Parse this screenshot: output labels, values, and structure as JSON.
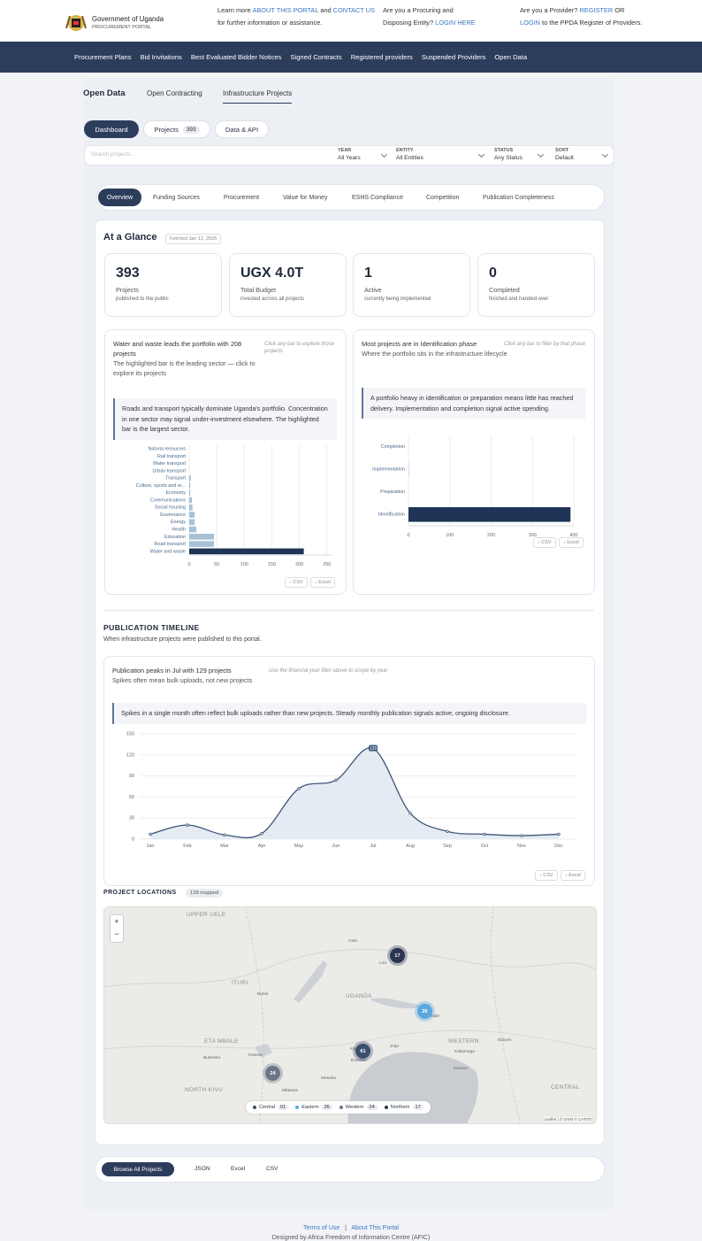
{
  "header": {
    "org": "Government of Uganda",
    "portal": "PROCUREMENT PORTAL",
    "info": [
      "Learn more ",
      "ABOUT THIS PORTAL",
      " and ",
      "CONTACT US",
      " for further information or assistance."
    ],
    "entity": [
      "Are you a Procuring and Disposing Entity? ",
      "LOGIN HERE"
    ],
    "provider": [
      "Are you a Provider? ",
      "REGISTER",
      " OR ",
      "LOGIN",
      " to the PPDA Register of Providers."
    ]
  },
  "nav": [
    "Procurement Plans",
    "Bid Invitations",
    "Best Evaluated Bidder Notices",
    "Signed Contracts",
    "Registered providers",
    "Suspended Providers",
    "Open Data"
  ],
  "tabs": [
    "Open Data",
    "Open Contracting",
    "Infrastructure Projects"
  ],
  "buttons": {
    "dashboard": "Dashboard",
    "projects": "Projects",
    "projects_count": 393,
    "api": "Data & API"
  },
  "filters": {
    "search": "Search projects...",
    "fields": [
      {
        "label": "YEAR",
        "value": "All Years"
      },
      {
        "label": "ENTITY",
        "value": "All Entities"
      },
      {
        "label": "STATUS",
        "value": "Any Status"
      },
      {
        "label": "SORT",
        "value": "Default"
      }
    ]
  },
  "section_tabs": [
    "Overview",
    "Funding Sources",
    "Procurement",
    "Value for Money",
    "ESHS Compliance",
    "Competition",
    "Publication Completeness"
  ],
  "glance": {
    "title": "At a Glance",
    "fetched": "Fetched Jan 12, 2026",
    "kpis": [
      {
        "value": 393,
        "label": "Projects",
        "note": "published to the public"
      },
      {
        "value": "UGX 4.0T",
        "label": "Total Budget",
        "note": "invested across all projects"
      },
      {
        "value": 1,
        "label": "Active",
        "note": "currently being implemented"
      },
      {
        "value": 0,
        "label": "Completed",
        "note": "finished and handed over"
      }
    ]
  },
  "chart_data": [
    {
      "type": "bar",
      "orientation": "horizontal",
      "title": "Water and waste leads the portfolio with 208 projects",
      "subtitle": "The highlighted bar is the leading sector — click to explore its projects",
      "hint": "Click any bar to explore those projects",
      "callout": "Roads and transport typically dominate Uganda's portfolio. Concentration in one sector may signal under-investment elsewhere. The highlighted bar is the largest sector.",
      "categories": [
        "Natural resources",
        "Rail transport",
        "Water transport",
        "Urban transport",
        "Transport",
        "Culture, sports and re...",
        "Economy",
        "Communications",
        "Social housing",
        "Governance",
        "Energy",
        "Health",
        "Education",
        "Road transport",
        "Water and waste"
      ],
      "values": [
        0,
        0,
        0,
        0,
        3,
        2,
        2,
        5,
        6,
        10,
        10,
        13,
        45,
        45,
        208
      ],
      "color": "#a9c1d6",
      "highlight_color": "#1f3456",
      "xlim": [
        0,
        260
      ],
      "xticks": [
        0,
        50,
        100,
        150,
        200,
        250
      ],
      "grid": true,
      "downloads": [
        "↓ CSV",
        "↓ Excel"
      ]
    },
    {
      "type": "bar",
      "orientation": "horizontal",
      "title": "Most projects are in Identification phase",
      "subtitle": "Where the portfolio sits in the infrastructure lifecycle",
      "hint": "Click any bar to filter by that phase",
      "callout": "A portfolio heavy in identification or preparation means little has reached delivery. Implementation and completion signal active spending.",
      "categories": [
        "Completion",
        "Implementation",
        "Preparation",
        "Identification"
      ],
      "values": [
        0,
        1,
        0,
        392
      ],
      "color": "#a9c1d6",
      "highlight_color": "#1f3456",
      "xlim": [
        0,
        400
      ],
      "xticks": [
        0,
        100,
        200,
        300,
        400
      ],
      "grid": true,
      "downloads": [
        "↓ CSV",
        "↓ Excel"
      ]
    },
    {
      "type": "line",
      "title": "Publication peaks in Jul with 129 projects",
      "subtitle": "Spikes often mean bulk uploads, not new projects",
      "hint": "Use the financial year filter above to scope by year",
      "callout": "Spikes in a single month often reflect bulk uploads rather than new projects. Steady monthly publication signals active, ongoing disclosure.",
      "categories": [
        "Jan",
        "Feb",
        "Mar",
        "Apr",
        "May",
        "Jun",
        "Jul",
        "Aug",
        "Sep",
        "Oct",
        "Nov",
        "Dec"
      ],
      "values": [
        7,
        20,
        6,
        8,
        72,
        84,
        129,
        37,
        11,
        7,
        5,
        7
      ],
      "color": "#3d5677",
      "fill": "#e4ebf3",
      "ylim": [
        0,
        150
      ],
      "yticks": [
        0,
        30,
        60,
        90,
        120,
        150
      ],
      "grid": true,
      "downloads": [
        "↓ CSV",
        "↓ Excel"
      ]
    }
  ],
  "timeline": {
    "title": "PUBLICATION TIMELINE",
    "subtitle": "When infrastructure projects were published to this portal."
  },
  "map": {
    "title": "PROJECT LOCATIONS",
    "badge": "128 mapped",
    "zoom": [
      "+",
      "−"
    ],
    "attribution": "Leaflet | © OSM © CARTO",
    "legend": [
      {
        "name": "Central",
        "count": 61,
        "color": "#3b4f6e"
      },
      {
        "name": "Eastern",
        "count": 26,
        "color": "#5aa8e0"
      },
      {
        "name": "Western",
        "count": 24,
        "color": "#6b7585"
      },
      {
        "name": "Northern",
        "count": 17,
        "color": "#2a3550"
      }
    ],
    "places": [
      "UPPER UELE",
      "ITURI",
      "ETA MBALE",
      "NORTH KIVU",
      "UGANDA",
      "WESTERN",
      "CENTRAL",
      "Gulu",
      "Lira",
      "Bunia",
      "Butembo",
      "Kasese",
      "Kampala",
      "Entebbe",
      "Jinja",
      "Mbale",
      "Eldoret",
      "Kakamega",
      "Kisumu",
      "Masaka",
      "Mbarara"
    ]
  },
  "actions": [
    "Browse All Projects",
    "JSON",
    "Excel",
    "CSV"
  ],
  "footer": {
    "links": [
      "Terms of Use",
      "About This Portal"
    ],
    "separator": "|",
    "credit": "Designed by Africa Freedom of Information Centre (AFIC)"
  }
}
